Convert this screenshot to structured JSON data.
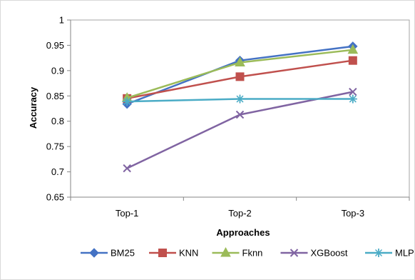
{
  "chart_data": {
    "type": "line",
    "title": "",
    "xlabel": "Approaches",
    "ylabel": "Accuracy",
    "categories": [
      "Top-1",
      "Top-2",
      "Top-3"
    ],
    "ylim": [
      0.65,
      1
    ],
    "yticks": [
      0.65,
      0.7,
      0.75,
      0.8,
      0.85,
      0.9,
      0.95,
      1
    ],
    "ytick_labels": [
      "0.65",
      "0.7",
      "0.75",
      "0.8",
      "0.85",
      "0.9",
      "0.95",
      "1"
    ],
    "grid": false,
    "legend_position": "bottom",
    "series": [
      {
        "name": "BM25",
        "values": [
          0.834,
          0.92,
          0.948
        ],
        "color": "#4472C4",
        "marker": "diamond"
      },
      {
        "name": "KNN",
        "values": [
          0.845,
          0.888,
          0.92
        ],
        "color": "#C0504D",
        "marker": "square"
      },
      {
        "name": "Fknn",
        "values": [
          0.846,
          0.916,
          0.941
        ],
        "color": "#9BBB59",
        "marker": "triangle"
      },
      {
        "name": "XGBoost",
        "values": [
          0.707,
          0.813,
          0.858
        ],
        "color": "#8064A2",
        "marker": "x"
      },
      {
        "name": "MLP",
        "values": [
          0.839,
          0.844,
          0.844
        ],
        "color": "#4BACC6",
        "marker": "star"
      }
    ]
  }
}
